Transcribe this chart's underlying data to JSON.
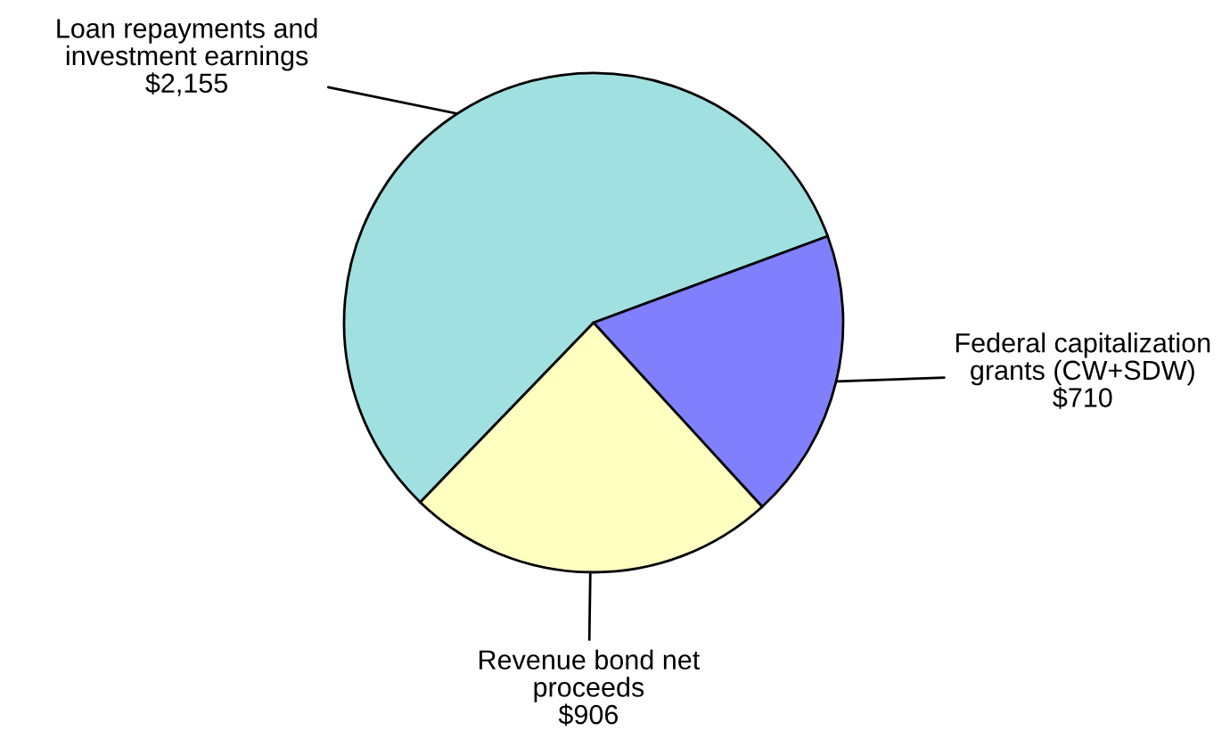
{
  "chart_data": {
    "type": "pie",
    "categories": [
      "Loan repayments and\ninvestment earnings",
      "Federal capitalization\ngrants (CW+SDW)",
      "Revenue bond net\nproceeds"
    ],
    "values": [
      2155,
      710,
      906
    ],
    "value_labels": [
      "$2,155",
      "$710",
      "$906"
    ],
    "colors": [
      "#a0e0e0",
      "#8080ff",
      "#ffffc0"
    ],
    "legend": false
  }
}
